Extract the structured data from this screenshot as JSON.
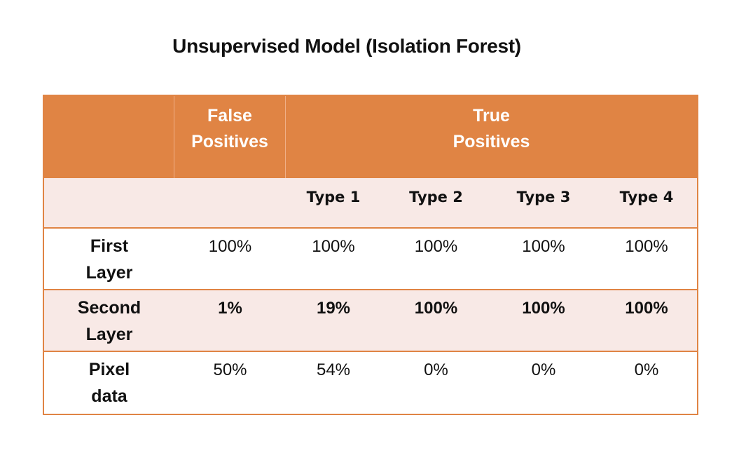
{
  "title": "Unsupervised Model (Isolation Forest)",
  "colors": {
    "header": "#e08444",
    "band": "#f8e9e6",
    "border": "#e08444"
  },
  "header": {
    "false_positives": "False\nPositives",
    "true_positives": "True\nPositives",
    "types": [
      "Type 1",
      "Type 2",
      "Type 3",
      "Type 4"
    ]
  },
  "rows": [
    {
      "label": "First\nLayer",
      "values": [
        "100%",
        "100%",
        "100%",
        "100%",
        "100%"
      ]
    },
    {
      "label": "Second\nLayer",
      "values": [
        "1%",
        "19%",
        "100%",
        "100%",
        "100%"
      ]
    },
    {
      "label": "Pixel\ndata",
      "values": [
        "50%",
        "54%",
        "0%",
        "0%",
        "0%"
      ]
    }
  ]
}
